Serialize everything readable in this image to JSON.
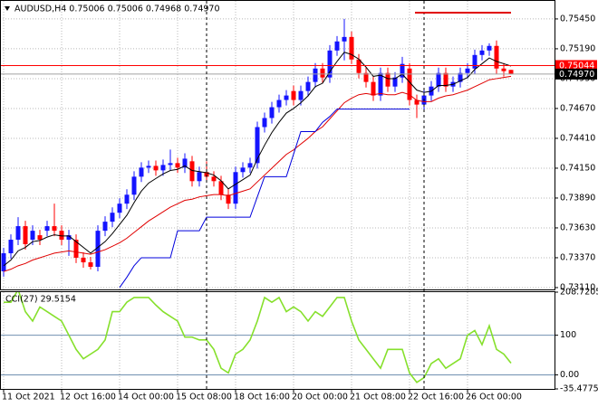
{
  "chart_data": [
    {
      "type": "candlestick",
      "title": "AUDUSD,H4  0.75006 0.75006 0.74968 0.74970",
      "x": [
        "11 Oct 2021",
        null,
        null,
        null,
        null,
        null,
        null,
        null,
        "12 Oct 16:00",
        null,
        null,
        null,
        null,
        null,
        null,
        null,
        "14 Oct 00:00",
        null,
        null,
        null,
        null,
        null,
        null,
        null,
        "15 Oct 08:00",
        null,
        null,
        null,
        null,
        null,
        null,
        null,
        "18 Oct 16:00",
        null,
        null,
        null,
        null,
        null,
        null,
        null,
        "20 Oct 00:00",
        null,
        null,
        null,
        null,
        null,
        null,
        null,
        "21 Oct 08:00",
        null,
        null,
        null,
        null,
        null,
        null,
        null,
        "22 Oct 16:00",
        null,
        null,
        null,
        null,
        null,
        null,
        null,
        "26 Oct 00:00",
        null,
        null,
        null,
        null,
        null,
        null
      ],
      "open": [
        0.73252,
        0.73409,
        0.73527,
        0.73645,
        0.73527,
        0.73566,
        0.73605,
        0.73645,
        0.73605,
        0.73527,
        0.73527,
        0.7337,
        0.7333,
        0.73291,
        0.73605,
        0.73684,
        0.73762,
        0.73841,
        0.73919,
        0.74076,
        0.74155,
        0.7417,
        0.74131,
        0.74178,
        0.74194,
        0.74155,
        0.7421,
        0.74037,
        0.74116,
        0.74076,
        0.74037,
        0.73919,
        0.73841,
        0.74116,
        0.74155,
        0.74194,
        0.74508,
        0.74587,
        0.74681,
        0.74744,
        0.74822,
        0.74744,
        0.74822,
        0.74901,
        0.75018,
        0.7494,
        0.75175,
        0.75254,
        0.75293,
        0.75097,
        0.74979,
        0.74901,
        0.74783,
        0.74979,
        0.74861,
        0.7494,
        0.75018,
        0.74744,
        0.74704,
        0.74783,
        0.74861,
        0.74979,
        0.74861,
        0.74901,
        0.74979,
        0.75018,
        0.75136,
        0.75175,
        0.75215,
        0.75018,
        0.75006
      ],
      "high": [
        0.73456,
        0.73574,
        0.73723,
        0.73692,
        0.73652,
        0.73613,
        0.73692,
        0.73841,
        0.73652,
        0.73613,
        0.73574,
        0.73417,
        0.73378,
        0.73652,
        0.73731,
        0.73809,
        0.73888,
        0.73966,
        0.74123,
        0.74202,
        0.74217,
        0.74217,
        0.74225,
        0.74312,
        0.74241,
        0.7428,
        0.74257,
        0.74163,
        0.7421,
        0.74123,
        0.74084,
        0.73966,
        0.74163,
        0.74202,
        0.74241,
        0.74555,
        0.74634,
        0.74728,
        0.74791,
        0.7483,
        0.74869,
        0.74869,
        0.74948,
        0.75065,
        0.75065,
        0.75222,
        0.75301,
        0.7545,
        0.7534,
        0.75144,
        0.75026,
        0.74948,
        0.75026,
        0.75026,
        0.74987,
        0.7512,
        0.75065,
        0.74791,
        0.7483,
        0.74909,
        0.75026,
        0.75026,
        0.74948,
        0.75026,
        0.75065,
        0.75183,
        0.75222,
        0.75238,
        0.75262,
        0.75065,
        0.75006
      ],
      "low": [
        0.73205,
        0.73362,
        0.7348,
        0.73441,
        0.7348,
        0.7348,
        0.73558,
        0.73558,
        0.7348,
        0.73386,
        0.73323,
        0.73283,
        0.73268,
        0.73252,
        0.73558,
        0.73637,
        0.73715,
        0.73794,
        0.73872,
        0.74029,
        0.74108,
        0.74084,
        0.74084,
        0.74131,
        0.74108,
        0.74108,
        0.7399,
        0.7399,
        0.74029,
        0.7399,
        0.73872,
        0.73794,
        0.73794,
        0.74068,
        0.74108,
        0.74147,
        0.74461,
        0.74539,
        0.74634,
        0.74696,
        0.74696,
        0.74696,
        0.74775,
        0.74853,
        0.74893,
        0.74893,
        0.75128,
        0.75089,
        0.75058,
        0.74932,
        0.74853,
        0.74736,
        0.74736,
        0.74814,
        0.74814,
        0.74893,
        0.74696,
        0.74587,
        0.74657,
        0.74736,
        0.74814,
        0.74814,
        0.74814,
        0.74853,
        0.74932,
        0.74971,
        0.75089,
        0.75128,
        0.74971,
        0.74948,
        0.74968
      ],
      "close": [
        0.73409,
        0.73527,
        0.73645,
        0.73488,
        0.73605,
        0.73527,
        0.73645,
        0.73605,
        0.73527,
        0.73566,
        0.7337,
        0.7333,
        0.73291,
        0.73605,
        0.73684,
        0.73762,
        0.73841,
        0.73919,
        0.74076,
        0.74155,
        0.7417,
        0.74131,
        0.74178,
        0.74194,
        0.74155,
        0.74233,
        0.74037,
        0.74116,
        0.74076,
        0.74037,
        0.73919,
        0.73841,
        0.74116,
        0.74155,
        0.74194,
        0.74508,
        0.74587,
        0.74681,
        0.74744,
        0.74783,
        0.74744,
        0.74822,
        0.74901,
        0.75018,
        0.7494,
        0.75175,
        0.75254,
        0.75293,
        0.75097,
        0.74979,
        0.74901,
        0.74783,
        0.74979,
        0.74861,
        0.7494,
        0.75058,
        0.74744,
        0.74704,
        0.74783,
        0.74861,
        0.74979,
        0.74861,
        0.74901,
        0.74979,
        0.75018,
        0.75136,
        0.75175,
        0.75215,
        0.75018,
        0.74995,
        0.7497
      ],
      "up_color": "#1414ff",
      "down_color": "#ff0000",
      "lines": [
        {
          "color": "#000000",
          "values": [
            0.733,
            0.7335,
            0.7343,
            0.7346,
            0.7351,
            0.7352,
            0.7355,
            0.7357,
            0.7356,
            0.7356,
            0.7351,
            0.7346,
            0.7341,
            0.7346,
            0.7351,
            0.7358,
            0.7366,
            0.7374,
            0.7385,
            0.7395,
            0.7402,
            0.7406,
            0.741,
            0.7413,
            0.7414,
            0.7417,
            0.7413,
            0.7412,
            0.7411,
            0.7409,
            0.7404,
            0.7397,
            0.7401,
            0.7405,
            0.7409,
            0.7423,
            0.7435,
            0.7446,
            0.7455,
            0.7463,
            0.7467,
            0.7472,
            0.7478,
            0.7486,
            0.7489,
            0.7499,
            0.7508,
            0.7516,
            0.7514,
            0.751,
            0.7503,
            0.7495,
            0.7496,
            0.7493,
            0.7493,
            0.7497,
            0.749,
            0.7483,
            0.7481,
            0.7482,
            0.7487,
            0.7487,
            0.7488,
            0.7491,
            0.7494,
            0.7501,
            0.7506,
            0.7511,
            0.7508,
            0.7506,
            0.7504
          ]
        },
        {
          "color": "#e00000",
          "values": [
            0.7325,
            0.7327,
            0.733,
            0.7332,
            0.7335,
            0.7337,
            0.7339,
            0.7341,
            0.7342,
            0.7343,
            0.7342,
            0.7341,
            0.734,
            0.7342,
            0.7344,
            0.7347,
            0.735,
            0.7354,
            0.7359,
            0.7364,
            0.7369,
            0.7373,
            0.7377,
            0.7381,
            0.7384,
            0.7387,
            0.7388,
            0.739,
            0.7391,
            0.7392,
            0.7392,
            0.7391,
            0.7393,
            0.7395,
            0.7397,
            0.7403,
            0.7409,
            0.7415,
            0.7421,
            0.7427,
            0.7431,
            0.7436,
            0.7441,
            0.7447,
            0.7451,
            0.7458,
            0.7465,
            0.7472,
            0.7476,
            0.7479,
            0.748,
            0.7479,
            0.748,
            0.7479,
            0.7479,
            0.7481,
            0.7479,
            0.7474,
            0.7473,
            0.7473,
            0.7476,
            0.7478,
            0.7479,
            0.7481,
            0.7483,
            0.7486,
            0.7489,
            0.7492,
            0.7493,
            0.7494,
            0.7495
          ]
        },
        {
          "color": "#0000dd",
          "values": [
            null,
            null,
            null,
            null,
            null,
            null,
            null,
            null,
            null,
            null,
            null,
            null,
            null,
            null,
            null,
            null,
            0.7311,
            0.732,
            0.733,
            0.7337,
            0.7337,
            0.7337,
            0.7337,
            0.7337,
            0.73605,
            0.73605,
            0.73605,
            0.73605,
            0.73723,
            0.73723,
            0.73723,
            0.73723,
            0.73723,
            0.73723,
            0.73723,
            0.739,
            0.74076,
            0.74076,
            0.74076,
            0.74076,
            0.74272,
            0.74469,
            0.74469,
            0.74469,
            0.7455,
            0.746,
            0.74665,
            0.74665,
            0.74665,
            0.74665,
            0.74665,
            0.74665,
            0.74665,
            0.74665,
            0.74665,
            0.74665,
            0.74665,
            null,
            null,
            null,
            null,
            null,
            null,
            null,
            null,
            null,
            null,
            null,
            null,
            null,
            null
          ]
        }
      ],
      "price_lines": [
        {
          "value": 0.75044,
          "label": "0.75044",
          "color": "#ff0000"
        },
        {
          "value": 0.7497,
          "label": "0.74970",
          "color": "#000000"
        }
      ],
      "ylim": [
        0.73094,
        0.75607
      ],
      "yticks": [
        {
          "value": 0.7545,
          "label": "0.75450"
        },
        {
          "value": 0.7519,
          "label": "0.75190"
        },
        {
          "value": 0.7493,
          "label": "0.74930"
        },
        {
          "value": 0.7467,
          "label": "0.74670"
        },
        {
          "value": 0.7441,
          "label": "0.74410"
        },
        {
          "value": 0.7415,
          "label": "0.74150"
        },
        {
          "value": 0.7389,
          "label": "0.73890"
        },
        {
          "value": 0.7363,
          "label": "0.73630"
        },
        {
          "value": 0.7337,
          "label": "0.73370"
        },
        {
          "value": 0.7311,
          "label": "0.73110"
        }
      ],
      "grid": true
    },
    {
      "type": "line",
      "title": "CCI(27) 29.5154",
      "color": "#86e02c",
      "values": [
        183.3,
        183.3,
        215,
        159.5,
        135.7,
        171.4,
        159.5,
        147.6,
        135.7,
        100,
        64.3,
        40.5,
        52.4,
        64.3,
        88.1,
        159.5,
        159.5,
        183.3,
        195.2,
        195.2,
        195.2,
        176.2,
        159.5,
        147.6,
        135.7,
        95.2,
        95.2,
        88.1,
        88.1,
        64.3,
        16.7,
        4.8,
        52.4,
        64.3,
        88.1,
        135.7,
        195.2,
        183.3,
        195.2,
        159.5,
        171.4,
        159.5,
        135.7,
        159.5,
        147.6,
        171.4,
        195.2,
        195.2,
        135.7,
        88.1,
        64.3,
        40.5,
        16.7,
        64.3,
        64.3,
        64.3,
        4.8,
        -19,
        -7.1,
        28.6,
        40.5,
        16.7,
        28.6,
        40.5,
        100,
        111.9,
        76.2,
        123.8,
        64.3,
        52.4,
        29.5
      ],
      "ylim": [
        -35.4775,
        208.7205
      ],
      "yticks": [
        208.7205,
        100,
        {
          "value": 0,
          "label": "0.00"
        },
        -35.4775
      ],
      "levels": [
        100,
        0
      ]
    }
  ]
}
